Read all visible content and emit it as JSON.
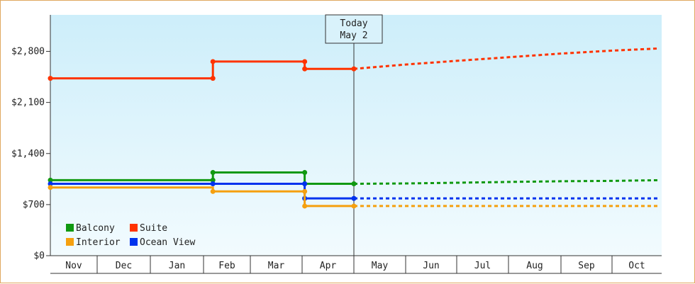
{
  "chart_data": {
    "type": "line",
    "title": "",
    "xlabel": "",
    "ylabel": "",
    "x_categories": [
      "Nov",
      "Dec",
      "Jan",
      "Feb",
      "Mar",
      "Apr",
      "May",
      "Jun",
      "Jul",
      "Aug",
      "Sep",
      "Oct"
    ],
    "y_ticks": [
      {
        "value": 0,
        "label": "$0"
      },
      {
        "value": 700,
        "label": "$700"
      },
      {
        "value": 1400,
        "label": "$1,400"
      },
      {
        "value": 2100,
        "label": "$2,100"
      },
      {
        "value": 2800,
        "label": "$2,800"
      }
    ],
    "ylim": [
      0,
      3300
    ],
    "grid": false,
    "legend_position": "bottom-left",
    "today": {
      "line1": "Today",
      "line2": "May 2",
      "x": 6.0
    },
    "series": [
      {
        "name": "Suite",
        "color": "#ff3300",
        "historical": [
          [
            0,
            2430
          ],
          [
            3.2,
            2430
          ],
          [
            3.2,
            2660
          ],
          [
            5.05,
            2660
          ],
          [
            5.05,
            2560
          ],
          [
            6.0,
            2560
          ]
        ],
        "markers": [
          [
            0,
            2430
          ],
          [
            3.2,
            2430
          ],
          [
            3.2,
            2660
          ],
          [
            5.05,
            2660
          ],
          [
            5.05,
            2560
          ],
          [
            6.0,
            2560
          ]
        ],
        "forecast": [
          [
            6.0,
            2560
          ],
          [
            7.0,
            2620
          ],
          [
            8.0,
            2670
          ],
          [
            9.0,
            2720
          ],
          [
            10.0,
            2770
          ],
          [
            11.0,
            2810
          ],
          [
            11.95,
            2840
          ]
        ]
      },
      {
        "name": "Balcony",
        "color": "#119911",
        "historical": [
          [
            0,
            1035
          ],
          [
            3.2,
            1035
          ],
          [
            3.2,
            1140
          ],
          [
            5.05,
            1140
          ],
          [
            5.05,
            985
          ],
          [
            6.0,
            985
          ]
        ],
        "markers": [
          [
            0,
            1035
          ],
          [
            3.2,
            1035
          ],
          [
            3.2,
            1140
          ],
          [
            5.05,
            1140
          ],
          [
            5.05,
            985
          ],
          [
            6.0,
            985
          ]
        ],
        "forecast": [
          [
            6.0,
            985
          ],
          [
            7.0,
            990
          ],
          [
            8.0,
            1000
          ],
          [
            9.0,
            1010
          ],
          [
            10.0,
            1020
          ],
          [
            11.0,
            1025
          ],
          [
            11.95,
            1035
          ]
        ]
      },
      {
        "name": "Ocean View",
        "color": "#0033ee",
        "historical": [
          [
            0,
            985
          ],
          [
            3.2,
            985
          ],
          [
            3.2,
            985
          ],
          [
            5.05,
            985
          ],
          [
            5.05,
            785
          ],
          [
            6.0,
            785
          ]
        ],
        "markers": [
          [
            0,
            985
          ],
          [
            3.2,
            985
          ],
          [
            5.05,
            985
          ],
          [
            5.05,
            785
          ],
          [
            6.0,
            785
          ]
        ],
        "forecast": [
          [
            6.0,
            785
          ],
          [
            11.95,
            785
          ]
        ]
      },
      {
        "name": "Interior",
        "color": "#f5a00f",
        "historical": [
          [
            0,
            935
          ],
          [
            3.2,
            935
          ],
          [
            3.2,
            880
          ],
          [
            5.05,
            880
          ],
          [
            5.05,
            680
          ],
          [
            6.0,
            680
          ]
        ],
        "markers": [
          [
            0,
            935
          ],
          [
            3.2,
            880
          ],
          [
            5.05,
            880
          ],
          [
            5.05,
            680
          ],
          [
            6.0,
            680
          ]
        ],
        "forecast": [
          [
            6.0,
            680
          ],
          [
            11.95,
            680
          ]
        ]
      }
    ],
    "legend": [
      {
        "name": "Balcony",
        "color": "#119911"
      },
      {
        "name": "Suite",
        "color": "#ff3300"
      },
      {
        "name": "Interior",
        "color": "#f5a00f"
      },
      {
        "name": "Ocean View",
        "color": "#0033ee"
      }
    ]
  }
}
